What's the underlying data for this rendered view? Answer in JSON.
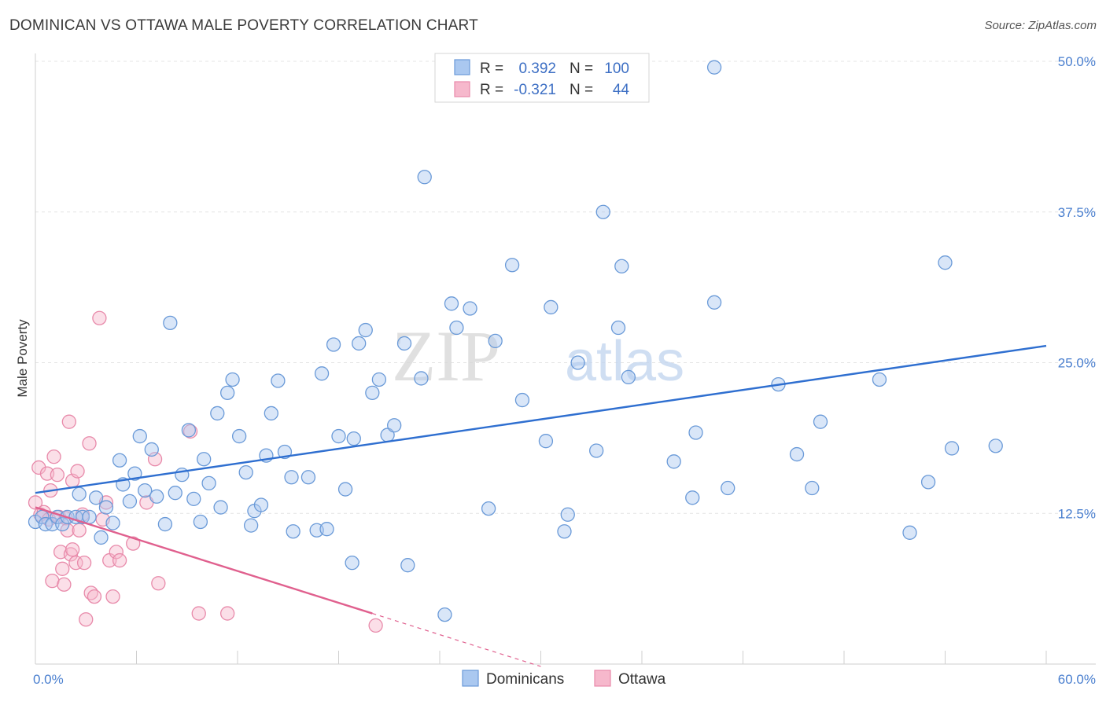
{
  "title": "DOMINICAN VS OTTAWA MALE POVERTY CORRELATION CHART",
  "source": "Source: ZipAtlas.com",
  "watermark": {
    "zip": "ZIP",
    "atlas": "atlas"
  },
  "colors": {
    "dominicans_fill": "#aac8f0",
    "dominicans_stroke": "#6a9ad8",
    "dominicans_line": "#2f6fd0",
    "ottawa_fill": "#f6b8cc",
    "ottawa_stroke": "#e88aaa",
    "ottawa_line": "#e0608e",
    "tick_text": "#4a7fcf",
    "grid": "#e4e4e4"
  },
  "legend": {
    "rows": [
      {
        "r_label": "R =",
        "r_value": "0.392",
        "n_label": "N =",
        "n_value": "100"
      },
      {
        "r_label": "R =",
        "r_value": "-0.321",
        "n_label": "N =",
        "n_value": "44"
      }
    ]
  },
  "chart_data": {
    "type": "scatter",
    "title": "DOMINICAN VS OTTAWA MALE POVERTY CORRELATION CHART",
    "xlabel": "",
    "ylabel": "Male Poverty",
    "xlim": [
      0,
      60
    ],
    "ylim": [
      0,
      50
    ],
    "x_tick_labels": [
      "0.0%",
      "60.0%"
    ],
    "y_ticks": [
      12.5,
      25.0,
      37.5,
      50.0
    ],
    "y_tick_labels": [
      "12.5%",
      "25.0%",
      "37.5%",
      "50.0%"
    ],
    "grid": true,
    "legend_position": "top-center",
    "series": [
      {
        "name": "Dominicans",
        "r": 0.392,
        "n": 100,
        "trend": {
          "x": [
            0,
            60
          ],
          "y": [
            14.2,
            26.4
          ]
        },
        "points": [
          [
            0.0,
            11.8
          ],
          [
            0.4,
            12.2
          ],
          [
            0.6,
            11.6
          ],
          [
            1.0,
            11.6
          ],
          [
            1.3,
            12.2
          ],
          [
            1.6,
            11.6
          ],
          [
            1.9,
            12.2
          ],
          [
            2.4,
            12.2
          ],
          [
            2.6,
            14.1
          ],
          [
            2.8,
            12.2
          ],
          [
            3.2,
            12.2
          ],
          [
            3.6,
            13.8
          ],
          [
            3.9,
            10.5
          ],
          [
            4.2,
            13.0
          ],
          [
            4.6,
            11.7
          ],
          [
            5.0,
            16.9
          ],
          [
            5.2,
            14.9
          ],
          [
            5.6,
            13.5
          ],
          [
            5.9,
            15.8
          ],
          [
            6.2,
            18.9
          ],
          [
            6.5,
            14.4
          ],
          [
            6.9,
            17.8
          ],
          [
            7.2,
            13.9
          ],
          [
            7.7,
            11.6
          ],
          [
            8.0,
            28.3
          ],
          [
            8.3,
            14.2
          ],
          [
            8.7,
            15.7
          ],
          [
            9.1,
            19.4
          ],
          [
            9.4,
            13.7
          ],
          [
            9.8,
            11.8
          ],
          [
            10.0,
            17.0
          ],
          [
            10.3,
            15.0
          ],
          [
            10.8,
            20.8
          ],
          [
            11.0,
            13.0
          ],
          [
            11.4,
            22.5
          ],
          [
            11.7,
            23.6
          ],
          [
            12.1,
            18.9
          ],
          [
            12.5,
            15.9
          ],
          [
            12.8,
            11.5
          ],
          [
            13.0,
            12.7
          ],
          [
            13.4,
            13.2
          ],
          [
            13.7,
            17.3
          ],
          [
            14.0,
            20.8
          ],
          [
            14.4,
            23.5
          ],
          [
            14.8,
            17.6
          ],
          [
            15.2,
            15.5
          ],
          [
            15.3,
            11.0
          ],
          [
            16.2,
            15.5
          ],
          [
            16.7,
            11.1
          ],
          [
            17.0,
            24.1
          ],
          [
            17.3,
            11.2
          ],
          [
            17.7,
            26.5
          ],
          [
            18.0,
            18.9
          ],
          [
            18.4,
            14.5
          ],
          [
            18.8,
            8.4
          ],
          [
            18.9,
            18.7
          ],
          [
            19.2,
            26.6
          ],
          [
            19.6,
            27.7
          ],
          [
            20.0,
            22.5
          ],
          [
            20.4,
            23.6
          ],
          [
            20.9,
            19.0
          ],
          [
            21.3,
            19.8
          ],
          [
            21.9,
            26.6
          ],
          [
            22.1,
            8.2
          ],
          [
            22.9,
            23.7
          ],
          [
            23.1,
            40.4
          ],
          [
            24.3,
            4.1
          ],
          [
            24.7,
            29.9
          ],
          [
            25.0,
            27.9
          ],
          [
            25.8,
            29.5
          ],
          [
            26.9,
            12.9
          ],
          [
            27.3,
            26.8
          ],
          [
            28.3,
            33.1
          ],
          [
            28.9,
            21.9
          ],
          [
            30.3,
            18.5
          ],
          [
            30.6,
            29.6
          ],
          [
            31.4,
            11.0
          ],
          [
            31.6,
            12.4
          ],
          [
            32.2,
            25.0
          ],
          [
            33.3,
            17.7
          ],
          [
            33.7,
            37.5
          ],
          [
            34.6,
            27.9
          ],
          [
            34.8,
            33.0
          ],
          [
            35.2,
            23.8
          ],
          [
            37.9,
            16.8
          ],
          [
            39.0,
            13.8
          ],
          [
            39.2,
            19.2
          ],
          [
            40.3,
            30.0
          ],
          [
            40.3,
            49.5
          ],
          [
            41.1,
            14.6
          ],
          [
            44.1,
            23.2
          ],
          [
            45.2,
            17.4
          ],
          [
            46.1,
            14.6
          ],
          [
            46.6,
            20.1
          ],
          [
            50.1,
            23.6
          ],
          [
            51.9,
            10.9
          ],
          [
            53.0,
            15.1
          ],
          [
            54.0,
            33.3
          ],
          [
            54.4,
            17.9
          ],
          [
            57.0,
            18.1
          ]
        ]
      },
      {
        "name": "Ottawa",
        "r": -0.321,
        "n": 44,
        "trend": {
          "x": [
            0,
            20
          ],
          "y": [
            13.0,
            4.2
          ],
          "dashed_extension": {
            "x": [
              20,
              30
            ],
            "y": [
              4.2,
              -0.2
            ]
          }
        },
        "points": [
          [
            0.0,
            13.4
          ],
          [
            0.2,
            16.3
          ],
          [
            0.3,
            12.4
          ],
          [
            0.5,
            12.6
          ],
          [
            0.7,
            15.8
          ],
          [
            0.8,
            12.0
          ],
          [
            0.9,
            14.4
          ],
          [
            1.0,
            6.9
          ],
          [
            1.1,
            17.2
          ],
          [
            1.3,
            15.7
          ],
          [
            1.4,
            12.2
          ],
          [
            1.5,
            9.3
          ],
          [
            1.6,
            7.9
          ],
          [
            1.7,
            6.6
          ],
          [
            1.8,
            12.1
          ],
          [
            1.9,
            11.1
          ],
          [
            2.0,
            20.1
          ],
          [
            2.1,
            9.1
          ],
          [
            2.2,
            15.2
          ],
          [
            2.4,
            8.4
          ],
          [
            2.5,
            16.0
          ],
          [
            2.6,
            11.1
          ],
          [
            2.8,
            12.4
          ],
          [
            2.9,
            8.4
          ],
          [
            3.0,
            3.7
          ],
          [
            3.2,
            18.3
          ],
          [
            3.3,
            5.9
          ],
          [
            3.5,
            5.6
          ],
          [
            3.8,
            28.7
          ],
          [
            4.0,
            12.0
          ],
          [
            4.2,
            13.4
          ],
          [
            4.4,
            8.6
          ],
          [
            4.6,
            5.6
          ],
          [
            4.8,
            9.3
          ],
          [
            5.0,
            8.6
          ],
          [
            5.8,
            10.0
          ],
          [
            6.6,
            13.4
          ],
          [
            7.1,
            17.0
          ],
          [
            7.3,
            6.7
          ],
          [
            9.2,
            19.3
          ],
          [
            9.7,
            4.2
          ],
          [
            11.4,
            4.2
          ],
          [
            20.2,
            3.2
          ],
          [
            2.2,
            9.5
          ]
        ]
      }
    ]
  },
  "bottom_legend": [
    {
      "name": "Dominicans"
    },
    {
      "name": "Ottawa"
    }
  ]
}
